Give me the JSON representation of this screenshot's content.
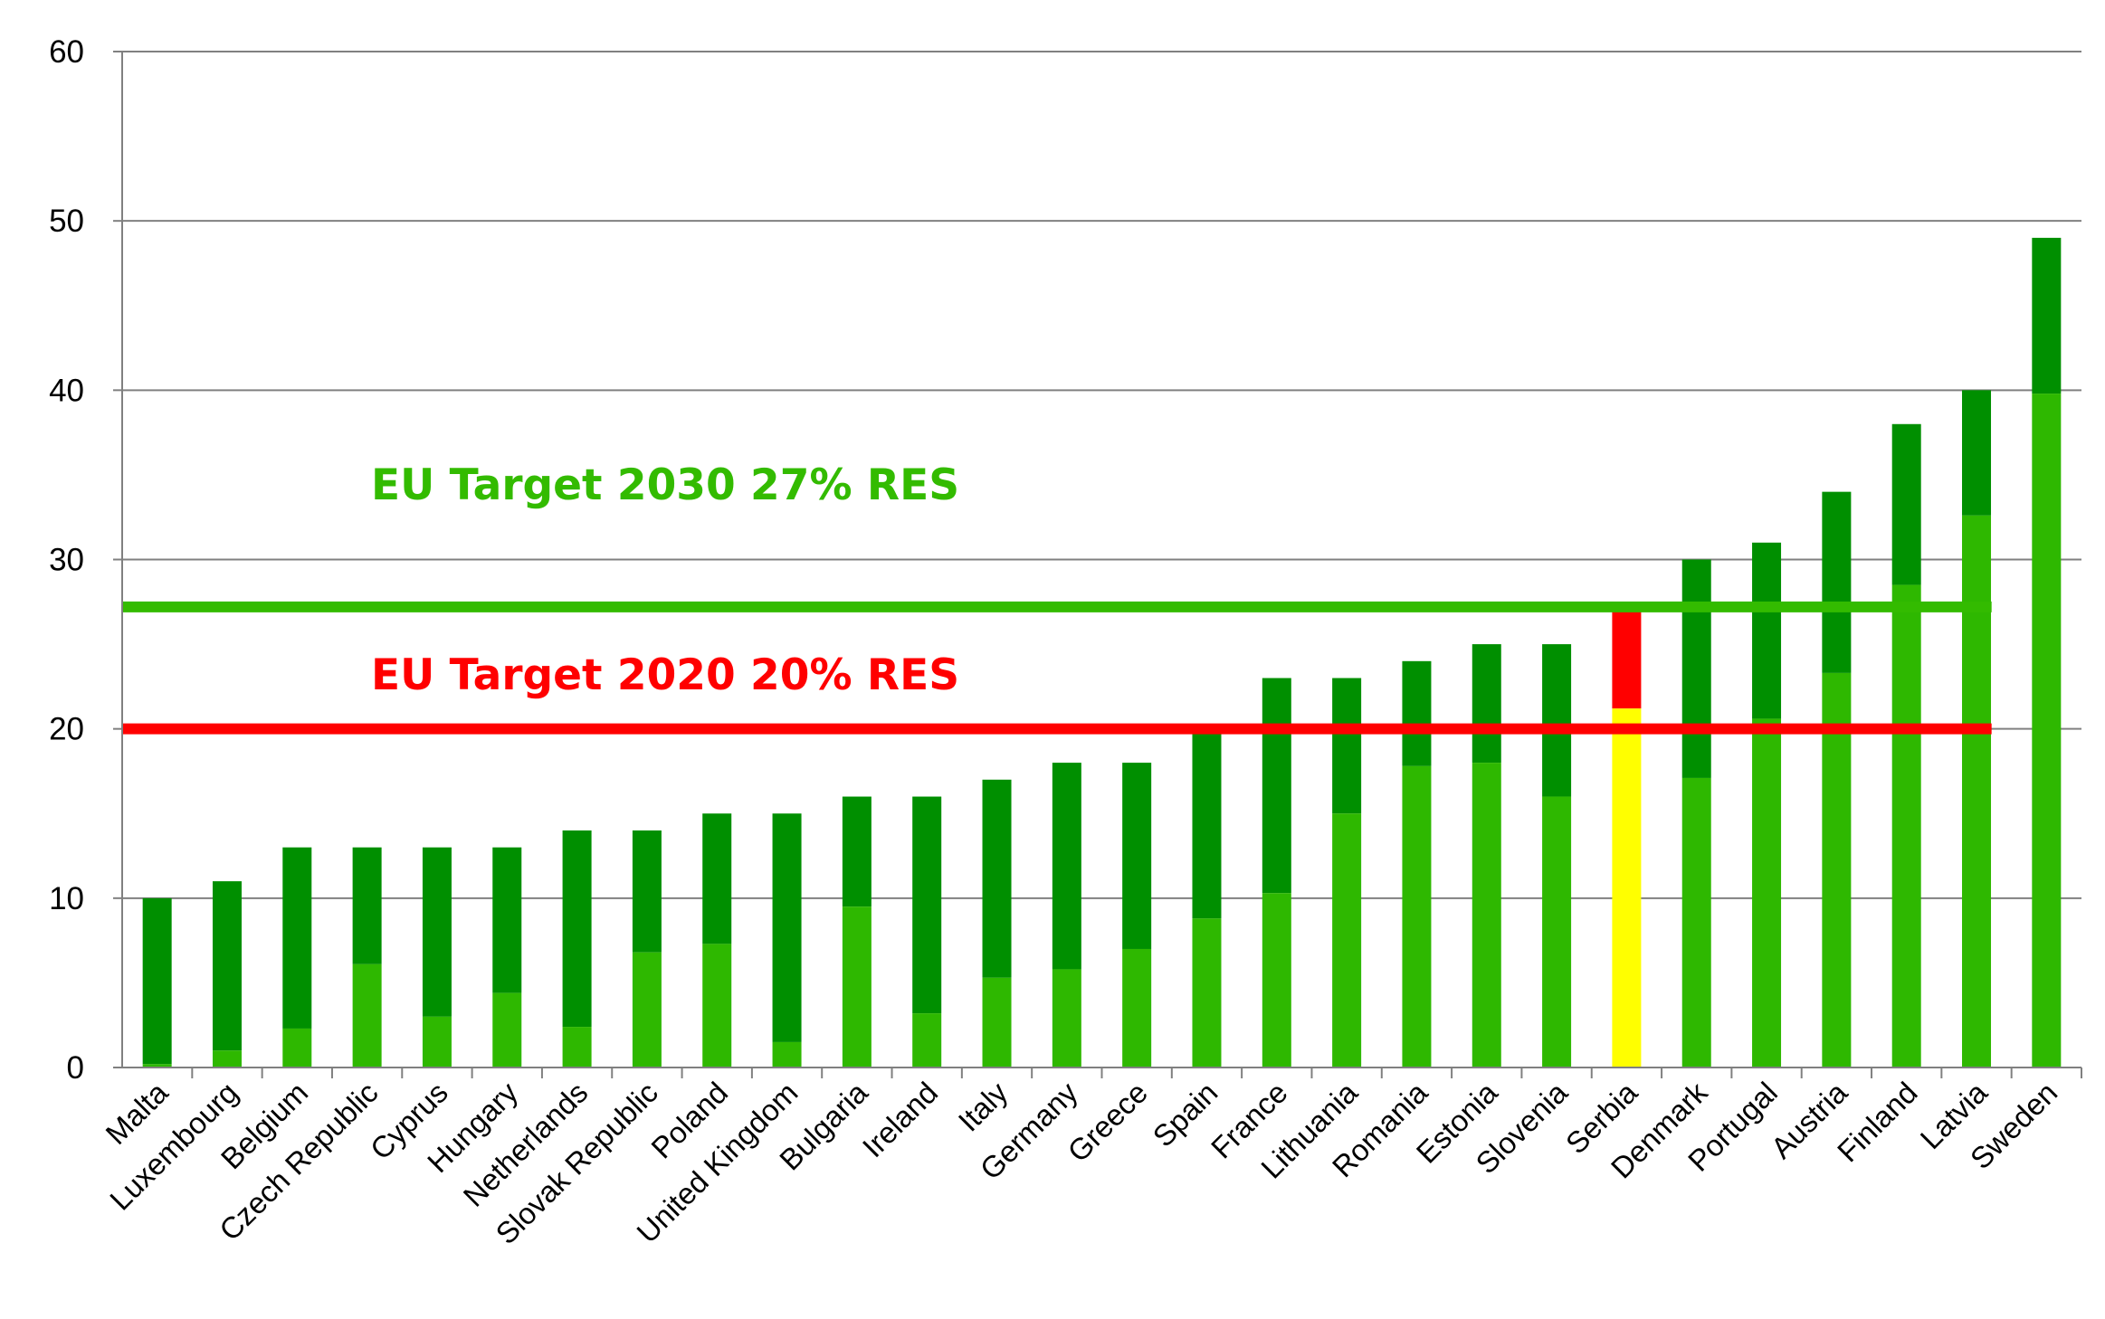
{
  "chart_data": {
    "type": "bar",
    "title": "",
    "xlabel": "",
    "ylabel": "",
    "ylim": [
      0,
      60
    ],
    "yticks": [
      0,
      10,
      20,
      30,
      40,
      50,
      60
    ],
    "grid": true,
    "categories": [
      "Malta",
      "Luxembourg",
      "Belgium",
      "Czech Republic",
      "Cyprus",
      "Hungary",
      "Netherlands",
      "Slovak Republic",
      "Poland",
      "United Kingdom",
      "Bulgaria",
      "Ireland",
      "Italy",
      "Germany",
      "Greece",
      "Spain",
      "France",
      "Lithuania",
      "Romania",
      "Estonia",
      "Slovenia",
      "Serbia",
      "Denmark",
      "Portugal",
      "Austria",
      "Finland",
      "Latvia",
      "Sweden"
    ],
    "series": [
      {
        "values": [
          0.2,
          1.0,
          2.3,
          6.1,
          3.0,
          4.4,
          2.4,
          6.8,
          7.3,
          1.5,
          9.5,
          3.2,
          5.3,
          5.8,
          7.0,
          8.8,
          10.3,
          15.0,
          17.8,
          18.0,
          16.0,
          21.2,
          17.1,
          20.6,
          23.3,
          28.5,
          32.6,
          39.8
        ]
      },
      {
        "values": [
          10,
          11,
          13,
          13,
          13,
          13,
          14,
          14,
          15,
          15,
          16,
          16,
          17,
          18,
          18,
          20,
          23,
          23,
          24,
          25,
          25,
          27,
          30,
          31,
          34,
          38,
          40,
          49
        ]
      }
    ],
    "highlight": {
      "category": "Serbia",
      "base_color": "#ffff00",
      "target_color": "#ff0000"
    },
    "reference_lines": [
      {
        "label": "EU Target 2030 27% RES",
        "value": 27.2,
        "color": "#33bb00"
      },
      {
        "label": "EU Target 2020 20% RES",
        "value": 20,
        "color": "#ff0000"
      }
    ],
    "colors": {
      "base": "#2eb800",
      "target": "#008f00",
      "grid": "#808080",
      "axis": "#808080"
    }
  }
}
